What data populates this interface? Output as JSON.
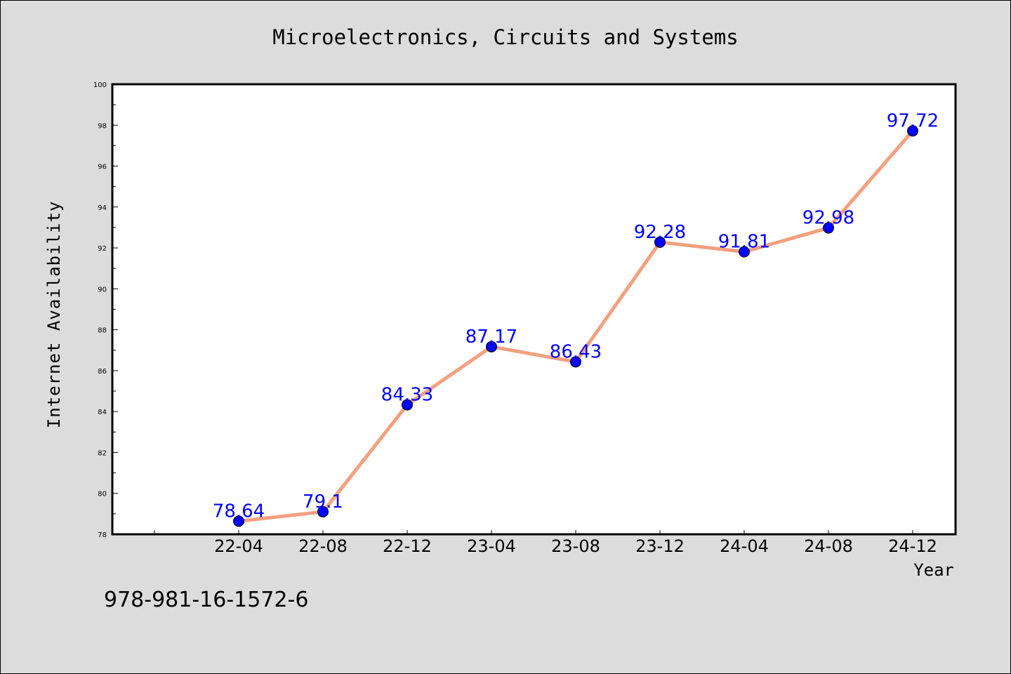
{
  "footer": {
    "isbn": "978-981-16-1572-6"
  },
  "colors": {
    "line": "#f4a07f",
    "marker": "#0000ff",
    "label": "#0000ff",
    "background": "#dcdcdc",
    "plot": "#ffffff"
  },
  "chart_data": {
    "type": "line",
    "title": "Microelectronics, Circuits and Systems",
    "xlabel": "Year",
    "ylabel": "Internet Availability",
    "categories": [
      "22-04",
      "22-08",
      "22-12",
      "23-04",
      "23-08",
      "23-12",
      "24-04",
      "24-08",
      "24-12"
    ],
    "values": [
      78.64,
      79.1,
      84.33,
      87.17,
      86.43,
      92.28,
      91.81,
      92.98,
      97.72
    ],
    "data_labels": [
      "78.64",
      "79.1",
      "84.33",
      "87.17",
      "86.43",
      "92.28",
      "91.81",
      "92.98",
      "97.72"
    ],
    "ylim": [
      78,
      100
    ],
    "yticks": [
      78,
      80,
      82,
      84,
      86,
      88,
      90,
      92,
      94,
      96,
      98,
      100
    ],
    "ytick_labels": [
      "78",
      "80",
      "82",
      "84",
      "86",
      "88",
      "90",
      "92",
      "94",
      "96",
      "98",
      "100"
    ],
    "grid": false,
    "legend": "none"
  }
}
